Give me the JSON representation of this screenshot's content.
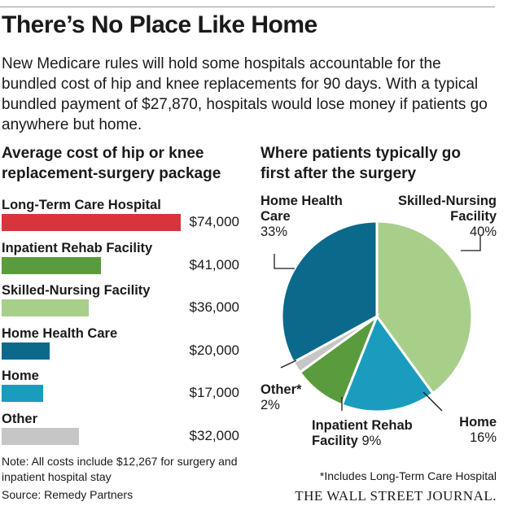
{
  "title": "There’s No Place Like Home",
  "subtitle": "New Medicare rules will hold some hospitals accountable for the bundled cost of hip and knee replacements for 90 days.  With a typical bundled payment of $27,870, hospitals would lose money if patients go anywhere but home.",
  "note": "Note: All costs include $12,267 for surgery and inpatient hospital stay",
  "source": "Source: Remedy Partners",
  "footnote": "*Includes Long-Term Care Hospital",
  "publisher": "THE WALL STREET JOURNAL.",
  "chart_data": [
    {
      "type": "bar",
      "orientation": "horizontal",
      "title": "Average cost of hip or knee replacement-surgery package",
      "categories": [
        "Long-Term Care Hospital",
        "Inpatient Rehab Facility",
        "Skilled-Nursing Facility",
        "Home Health Care",
        "Home",
        "Other"
      ],
      "values": [
        74000,
        41000,
        36000,
        20000,
        17000,
        32000
      ],
      "value_labels": [
        "$74,000",
        "$41,000",
        "$36,000",
        "$20,000",
        "$17,000",
        "$32,000"
      ],
      "colors": [
        "#d9343c",
        "#5a9b3e",
        "#a8cf8a",
        "#0b6a8c",
        "#1a9cbf",
        "#c6c6c6"
      ]
    },
    {
      "type": "pie",
      "title": "Where patients typically go first after the surgery",
      "slices": [
        {
          "label_lines": [
            "Skilled-Nursing",
            "Facility"
          ],
          "value": 40,
          "pct_label": "40%",
          "color": "#a8cf8a"
        },
        {
          "label_lines": [
            "Home"
          ],
          "value": 16,
          "pct_label": "16%",
          "color": "#1a9cbf"
        },
        {
          "label_lines": [
            "Inpatient Rehab",
            "Facility"
          ],
          "value": 9,
          "pct_label": "9%",
          "color": "#5a9b3e"
        },
        {
          "label_lines": [
            "Other*"
          ],
          "value": 2,
          "pct_label": "2%",
          "color": "#c6c6c6"
        },
        {
          "label_lines": [
            "Home Health",
            "Care"
          ],
          "value": 33,
          "pct_label": "33%",
          "color": "#0b6a8c"
        }
      ]
    }
  ]
}
